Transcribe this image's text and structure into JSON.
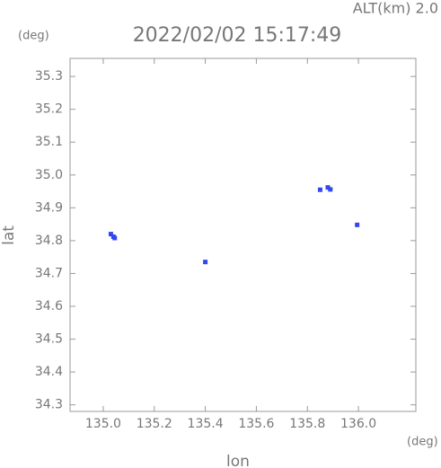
{
  "chart_data": {
    "type": "scatter",
    "title": "2022/02/02 15:17:49",
    "subtitle": "ALT(km) 2.0",
    "x_label": "lon",
    "y_label": "lat",
    "x_unit": "(deg)",
    "y_unit": "(deg)",
    "xlim": [
      134.87,
      136.225
    ],
    "ylim": [
      34.28,
      35.355
    ],
    "xticks": [
      {
        "value": 135,
        "label": "135.0"
      },
      135.2,
      135.4,
      135.6,
      135.8,
      {
        "value": 136,
        "label": "136.0"
      }
    ],
    "yticks": [
      34.3,
      34.4,
      34.5,
      34.6,
      34.7,
      34.8,
      34.9,
      {
        "value": 35,
        "label": "35.0"
      },
      35.1,
      35.2,
      35.3
    ],
    "series": [
      {
        "color": "#3347ee",
        "x": [
          135.03,
          135.04,
          135.045,
          135.4,
          135.85,
          135.88,
          135.89,
          135.995
        ],
        "values": [
          34.82,
          34.812,
          34.808,
          34.735,
          34.955,
          34.962,
          34.956,
          34.848
        ]
      }
    ]
  }
}
